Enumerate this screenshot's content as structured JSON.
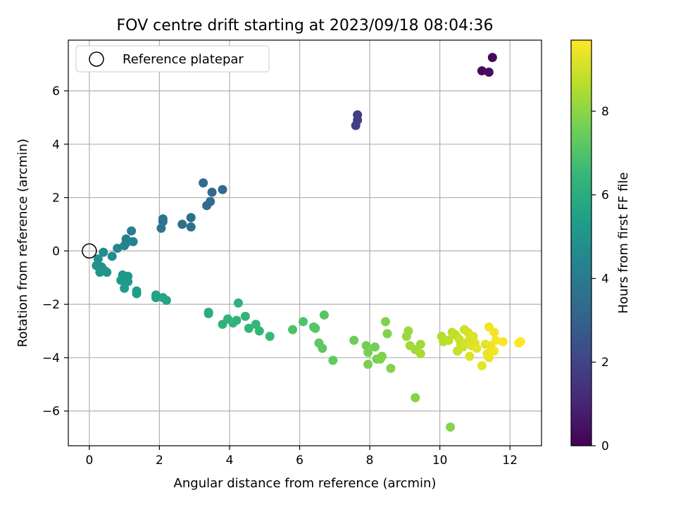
{
  "chart_data": {
    "type": "scatter",
    "title": "FOV centre drift starting at 2023/09/18 08:04:36",
    "xlabel": "Angular distance from reference (arcmin)",
    "ylabel": "Rotation from reference (arcmin)",
    "xlim": [
      -0.6,
      12.9
    ],
    "ylim": [
      -7.3,
      7.9
    ],
    "xticks": [
      "0",
      "2",
      "4",
      "6",
      "8",
      "10",
      "12"
    ],
    "xtick_values": [
      0,
      2,
      4,
      6,
      8,
      10,
      12
    ],
    "yticks": [
      "6",
      "4",
      "2",
      "0",
      "−2",
      "−4",
      "−6"
    ],
    "ytick_values": [
      6,
      4,
      2,
      0,
      -2,
      -4,
      -6
    ],
    "grid": true,
    "legend": {
      "placement": "top-left",
      "label": "Reference platepar"
    },
    "reference_point": {
      "x": 0,
      "y": 0
    },
    "colorbar": {
      "label": "Hours from first FF file",
      "range": [
        0,
        9.7
      ],
      "colormap": "viridis",
      "ticks": [
        "0",
        "2",
        "4",
        "6",
        "8"
      ],
      "tick_values": [
        0,
        2,
        4,
        6,
        8
      ],
      "stops": [
        "#440154",
        "#482878",
        "#3e4989",
        "#31688e",
        "#26828e",
        "#1f9e89",
        "#35b779",
        "#6ece58",
        "#b5de2b",
        "#fde725"
      ]
    },
    "points": [
      {
        "x": 11.5,
        "y": 7.25,
        "h": 0.2
      },
      {
        "x": 11.2,
        "y": 6.75,
        "h": 0.3
      },
      {
        "x": 11.4,
        "y": 6.7,
        "h": 0.4
      },
      {
        "x": 7.65,
        "y": 5.1,
        "h": 1.8
      },
      {
        "x": 7.65,
        "y": 4.9,
        "h": 1.8
      },
      {
        "x": 7.6,
        "y": 4.7,
        "h": 1.9
      },
      {
        "x": 3.25,
        "y": 2.55,
        "h": 3.3
      },
      {
        "x": 3.8,
        "y": 2.3,
        "h": 3.3
      },
      {
        "x": 3.5,
        "y": 2.2,
        "h": 3.3
      },
      {
        "x": 3.45,
        "y": 1.85,
        "h": 3.4
      },
      {
        "x": 3.35,
        "y": 1.7,
        "h": 3.4
      },
      {
        "x": 2.9,
        "y": 1.25,
        "h": 3.5
      },
      {
        "x": 2.65,
        "y": 1.0,
        "h": 3.5
      },
      {
        "x": 2.9,
        "y": 0.9,
        "h": 3.5
      },
      {
        "x": 2.1,
        "y": 1.2,
        "h": 3.7
      },
      {
        "x": 2.1,
        "y": 1.1,
        "h": 3.7
      },
      {
        "x": 2.05,
        "y": 0.85,
        "h": 3.8
      },
      {
        "x": 1.2,
        "y": 0.75,
        "h": 4.2
      },
      {
        "x": 1.25,
        "y": 0.35,
        "h": 4.3
      },
      {
        "x": 1.05,
        "y": 0.45,
        "h": 4.3
      },
      {
        "x": 1.05,
        "y": 0.3,
        "h": 4.4
      },
      {
        "x": 1.0,
        "y": 0.2,
        "h": 4.4
      },
      {
        "x": 0.8,
        "y": 0.1,
        "h": 4.5
      },
      {
        "x": 0.65,
        "y": -0.2,
        "h": 4.6
      },
      {
        "x": 0.4,
        "y": -0.05,
        "h": 4.7
      },
      {
        "x": 0.25,
        "y": -0.3,
        "h": 4.8
      },
      {
        "x": 0.2,
        "y": -0.55,
        "h": 4.9
      },
      {
        "x": 0.35,
        "y": -0.6,
        "h": 4.9
      },
      {
        "x": 0.3,
        "y": -0.8,
        "h": 5.0
      },
      {
        "x": 0.45,
        "y": -0.75,
        "h": 5.0
      },
      {
        "x": 0.5,
        "y": -0.8,
        "h": 5.0
      },
      {
        "x": 0.95,
        "y": -0.9,
        "h": 5.1
      },
      {
        "x": 1.1,
        "y": -0.95,
        "h": 5.1
      },
      {
        "x": 0.9,
        "y": -1.1,
        "h": 5.2
      },
      {
        "x": 1.0,
        "y": -1.15,
        "h": 5.2
      },
      {
        "x": 1.1,
        "y": -1.15,
        "h": 5.2
      },
      {
        "x": 1.0,
        "y": -1.4,
        "h": 5.3
      },
      {
        "x": 1.35,
        "y": -1.5,
        "h": 5.4
      },
      {
        "x": 1.35,
        "y": -1.6,
        "h": 5.4
      },
      {
        "x": 1.9,
        "y": -1.65,
        "h": 5.6
      },
      {
        "x": 1.9,
        "y": -1.75,
        "h": 5.6
      },
      {
        "x": 2.1,
        "y": -1.75,
        "h": 5.7
      },
      {
        "x": 2.2,
        "y": -1.85,
        "h": 5.7
      },
      {
        "x": 3.4,
        "y": -2.3,
        "h": 6.0
      },
      {
        "x": 3.4,
        "y": -2.35,
        "h": 6.0
      },
      {
        "x": 4.25,
        "y": -1.95,
        "h": 6.2
      },
      {
        "x": 3.95,
        "y": -2.55,
        "h": 6.2
      },
      {
        "x": 4.2,
        "y": -2.6,
        "h": 6.3
      },
      {
        "x": 4.45,
        "y": -2.45,
        "h": 6.3
      },
      {
        "x": 4.1,
        "y": -2.7,
        "h": 6.3
      },
      {
        "x": 3.8,
        "y": -2.75,
        "h": 6.3
      },
      {
        "x": 4.75,
        "y": -2.75,
        "h": 6.4
      },
      {
        "x": 4.55,
        "y": -2.9,
        "h": 6.4
      },
      {
        "x": 4.85,
        "y": -3.0,
        "h": 6.4
      },
      {
        "x": 5.15,
        "y": -3.2,
        "h": 6.5
      },
      {
        "x": 5.8,
        "y": -2.95,
        "h": 6.9
      },
      {
        "x": 6.1,
        "y": -2.65,
        "h": 7.0
      },
      {
        "x": 6.7,
        "y": -2.4,
        "h": 7.1
      },
      {
        "x": 6.4,
        "y": -2.85,
        "h": 7.1
      },
      {
        "x": 6.45,
        "y": -2.9,
        "h": 7.1
      },
      {
        "x": 6.55,
        "y": -3.45,
        "h": 7.2
      },
      {
        "x": 6.65,
        "y": -3.65,
        "h": 7.2
      },
      {
        "x": 6.95,
        "y": -4.1,
        "h": 7.3
      },
      {
        "x": 7.55,
        "y": -3.35,
        "h": 7.5
      },
      {
        "x": 7.9,
        "y": -3.55,
        "h": 7.6
      },
      {
        "x": 8.15,
        "y": -3.6,
        "h": 7.6
      },
      {
        "x": 7.95,
        "y": -3.8,
        "h": 7.7
      },
      {
        "x": 7.95,
        "y": -4.25,
        "h": 7.7
      },
      {
        "x": 8.2,
        "y": -4.05,
        "h": 7.7
      },
      {
        "x": 8.35,
        "y": -3.95,
        "h": 7.8
      },
      {
        "x": 8.3,
        "y": -4.05,
        "h": 7.8
      },
      {
        "x": 8.45,
        "y": -2.65,
        "h": 7.8
      },
      {
        "x": 8.5,
        "y": -3.1,
        "h": 7.8
      },
      {
        "x": 8.6,
        "y": -4.4,
        "h": 7.9
      },
      {
        "x": 9.3,
        "y": -5.5,
        "h": 7.9
      },
      {
        "x": 10.3,
        "y": -6.6,
        "h": 7.9
      },
      {
        "x": 9.1,
        "y": -3.0,
        "h": 8.2
      },
      {
        "x": 9.05,
        "y": -3.2,
        "h": 8.2
      },
      {
        "x": 9.15,
        "y": -3.55,
        "h": 8.3
      },
      {
        "x": 9.3,
        "y": -3.7,
        "h": 8.3
      },
      {
        "x": 9.45,
        "y": -3.5,
        "h": 8.3
      },
      {
        "x": 9.45,
        "y": -3.85,
        "h": 8.4
      },
      {
        "x": 10.05,
        "y": -3.2,
        "h": 8.6
      },
      {
        "x": 10.1,
        "y": -3.4,
        "h": 8.6
      },
      {
        "x": 10.25,
        "y": -3.35,
        "h": 8.7
      },
      {
        "x": 10.35,
        "y": -3.05,
        "h": 8.8
      },
      {
        "x": 10.45,
        "y": -3.15,
        "h": 8.8
      },
      {
        "x": 10.55,
        "y": -3.3,
        "h": 8.9
      },
      {
        "x": 10.6,
        "y": -3.5,
        "h": 8.9
      },
      {
        "x": 10.5,
        "y": -3.75,
        "h": 8.9
      },
      {
        "x": 10.65,
        "y": -3.6,
        "h": 9.0
      },
      {
        "x": 10.7,
        "y": -2.95,
        "h": 9.0
      },
      {
        "x": 10.8,
        "y": -3.05,
        "h": 9.1
      },
      {
        "x": 10.75,
        "y": -3.45,
        "h": 9.1
      },
      {
        "x": 10.85,
        "y": -3.3,
        "h": 9.1
      },
      {
        "x": 10.9,
        "y": -3.55,
        "h": 9.2
      },
      {
        "x": 10.95,
        "y": -3.2,
        "h": 9.2
      },
      {
        "x": 11.0,
        "y": -3.45,
        "h": 9.2
      },
      {
        "x": 10.85,
        "y": -3.95,
        "h": 9.2
      },
      {
        "x": 11.05,
        "y": -3.65,
        "h": 9.3
      },
      {
        "x": 11.3,
        "y": -3.5,
        "h": 9.3
      },
      {
        "x": 11.2,
        "y": -4.3,
        "h": 9.3
      },
      {
        "x": 11.35,
        "y": -3.85,
        "h": 9.4
      },
      {
        "x": 11.4,
        "y": -4.0,
        "h": 9.4
      },
      {
        "x": 11.45,
        "y": -3.55,
        "h": 9.4
      },
      {
        "x": 11.4,
        "y": -2.85,
        "h": 9.5
      },
      {
        "x": 11.55,
        "y": -3.05,
        "h": 9.5
      },
      {
        "x": 11.55,
        "y": -3.75,
        "h": 9.5
      },
      {
        "x": 11.6,
        "y": -3.35,
        "h": 9.6
      },
      {
        "x": 11.8,
        "y": -3.4,
        "h": 9.6
      },
      {
        "x": 12.3,
        "y": -3.4,
        "h": 9.7
      },
      {
        "x": 12.25,
        "y": -3.45,
        "h": 9.7
      }
    ]
  }
}
